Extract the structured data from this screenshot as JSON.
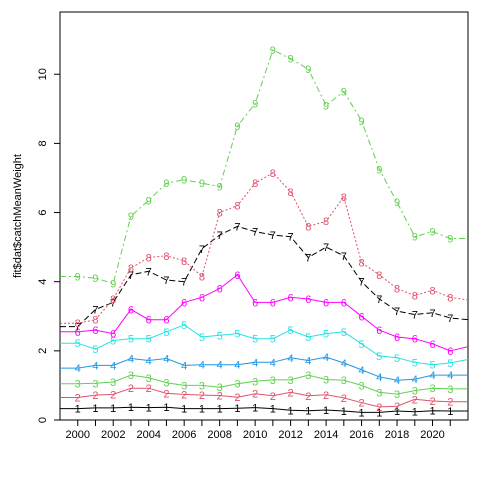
{
  "chart_data": {
    "type": "line",
    "title": "",
    "xlabel": "",
    "ylabel": "fit$dat$catchMeanWeight",
    "xlim": [
      1999,
      2022
    ],
    "ylim": [
      0,
      11.8
    ],
    "x_ticks": [
      2000,
      2002,
      2004,
      2006,
      2008,
      2010,
      2012,
      2014,
      2016,
      2018,
      2020
    ],
    "y_ticks": [
      0,
      2,
      4,
      6,
      8,
      10
    ],
    "grid": false,
    "legend": "none",
    "x": [
      1999,
      2000,
      2001,
      2002,
      2003,
      2004,
      2005,
      2006,
      2007,
      2008,
      2009,
      2010,
      2011,
      2012,
      2013,
      2014,
      2015,
      2016,
      2017,
      2018,
      2019,
      2020,
      2021,
      2022
    ],
    "label_years": [
      2000,
      2001,
      2002,
      2003,
      2004,
      2005,
      2006,
      2007,
      2008,
      2009,
      2010,
      2011,
      2012,
      2013,
      2014,
      2015,
      2016,
      2017,
      2018,
      2019,
      2020,
      2021
    ],
    "series": [
      {
        "name": "1",
        "color": "#000000",
        "dash": "solid",
        "values": [
          0.33,
          0.33,
          0.35,
          0.35,
          0.37,
          0.36,
          0.37,
          0.33,
          0.33,
          0.33,
          0.34,
          0.36,
          0.33,
          0.28,
          0.27,
          0.29,
          0.26,
          0.22,
          0.22,
          0.26,
          0.24,
          0.27,
          0.26,
          0.26
        ]
      },
      {
        "name": "2",
        "color": "#df536b",
        "dash": "solid",
        "values": [
          0.65,
          0.65,
          0.72,
          0.74,
          0.92,
          0.92,
          0.77,
          0.74,
          0.72,
          0.71,
          0.66,
          0.76,
          0.7,
          0.8,
          0.7,
          0.73,
          0.64,
          0.5,
          0.38,
          0.4,
          0.6,
          0.55,
          0.53,
          0.53
        ]
      },
      {
        "name": "3",
        "color": "#61d04f",
        "dash": "solid",
        "values": [
          1.05,
          1.05,
          1.06,
          1.1,
          1.3,
          1.22,
          1.08,
          1.0,
          1.0,
          0.95,
          1.05,
          1.12,
          1.16,
          1.16,
          1.3,
          1.17,
          1.15,
          1.0,
          0.8,
          0.75,
          0.85,
          0.92,
          0.9,
          0.9
        ]
      },
      {
        "name": "4",
        "color": "#2297e6",
        "dash": "solid",
        "values": [
          1.5,
          1.5,
          1.58,
          1.58,
          1.78,
          1.72,
          1.78,
          1.58,
          1.6,
          1.6,
          1.6,
          1.67,
          1.67,
          1.8,
          1.72,
          1.82,
          1.65,
          1.45,
          1.25,
          1.15,
          1.18,
          1.3,
          1.3,
          1.3
        ]
      },
      {
        "name": "5",
        "color": "#28e2e5",
        "dash": "solid",
        "values": [
          2.22,
          2.22,
          2.05,
          2.3,
          2.35,
          2.35,
          2.55,
          2.75,
          2.4,
          2.45,
          2.5,
          2.35,
          2.35,
          2.6,
          2.4,
          2.5,
          2.55,
          2.2,
          1.85,
          1.8,
          1.67,
          1.6,
          1.65,
          1.75
        ]
      },
      {
        "name": "6",
        "color": "#ff00ff",
        "dash": "solid",
        "values": [
          2.55,
          2.55,
          2.6,
          2.5,
          3.2,
          2.9,
          2.9,
          3.4,
          3.55,
          3.8,
          4.2,
          3.4,
          3.4,
          3.55,
          3.5,
          3.4,
          3.4,
          3.0,
          2.6,
          2.4,
          2.35,
          2.2,
          2.0,
          2.12
        ]
      },
      {
        "name": "7",
        "color": "#000000",
        "dash": "6,3",
        "values": [
          2.7,
          2.7,
          3.2,
          3.4,
          4.2,
          4.3,
          4.05,
          4.0,
          4.95,
          5.35,
          5.6,
          5.45,
          5.35,
          5.3,
          4.7,
          5.0,
          4.75,
          4.0,
          3.5,
          3.15,
          3.05,
          3.1,
          2.95,
          2.9
        ]
      },
      {
        "name": "8",
        "color": "#df536b",
        "dash": "2,2",
        "values": [
          2.8,
          2.8,
          2.9,
          3.5,
          4.4,
          4.7,
          4.75,
          4.6,
          4.15,
          6.0,
          6.2,
          6.85,
          7.15,
          6.6,
          5.6,
          5.75,
          6.45,
          4.55,
          4.2,
          3.8,
          3.6,
          3.75,
          3.55,
          3.47
        ]
      },
      {
        "name": "9",
        "color": "#61d04f",
        "dash": "6,3,2,3",
        "values": [
          4.15,
          4.15,
          4.1,
          3.95,
          5.9,
          6.35,
          6.85,
          6.95,
          6.85,
          6.75,
          8.5,
          9.15,
          10.7,
          10.45,
          10.15,
          9.1,
          9.5,
          8.65,
          7.25,
          6.3,
          5.3,
          5.45,
          5.25,
          5.25
        ]
      }
    ]
  }
}
